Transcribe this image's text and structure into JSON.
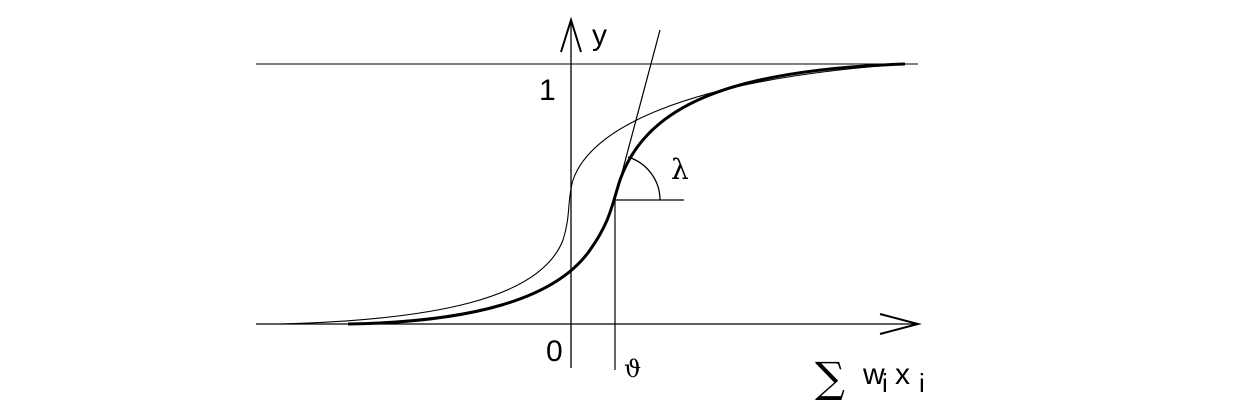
{
  "diagram": {
    "axes": {
      "y_label": "y",
      "x_label_sum": "∑",
      "x_label_w": "w",
      "x_label_w_sub": "i",
      "x_label_x": "x",
      "x_label_x_sub": "i",
      "y_tick_one": "1",
      "origin": "0"
    },
    "annotations": {
      "threshold": "ϑ",
      "slope_angle": "λ"
    },
    "colors": {
      "ink": "#000000",
      "background": "#ffffff"
    }
  }
}
